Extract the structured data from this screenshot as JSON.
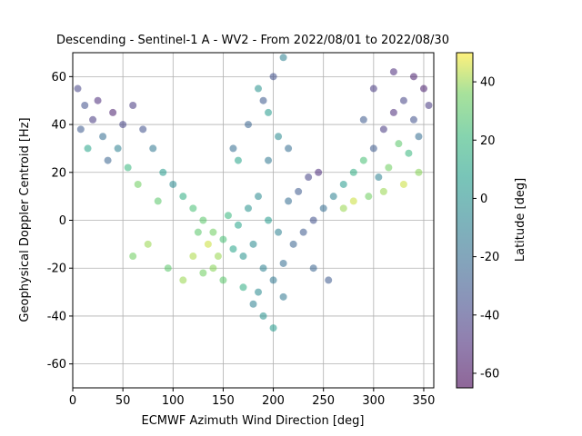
{
  "chart_data": {
    "type": "scatter",
    "title": "Descending - Sentinel-1 A - WV2 - From 2022/08/01 to 2022/08/30",
    "xlabel": "ECMWF Azimuth Wind Direction [deg]",
    "ylabel": "Geophysical Doppler Centroid [Hz]",
    "xlim": [
      0,
      360
    ],
    "ylim": [
      -70,
      70
    ],
    "xticks": [
      0,
      50,
      100,
      150,
      200,
      250,
      300,
      350
    ],
    "yticks": [
      -60,
      -40,
      -20,
      0,
      20,
      40,
      60
    ],
    "grid": true,
    "colorbar": {
      "label": "Latitude [deg]",
      "range": [
        -65,
        50
      ],
      "ticks": [
        -60,
        -40,
        -20,
        0,
        20,
        40
      ],
      "colormap": "viridis",
      "alpha": 0.55
    },
    "series": [
      {
        "points": [
          [
            5,
            55,
            -40
          ],
          [
            12,
            48,
            -35
          ],
          [
            20,
            42,
            -45
          ],
          [
            8,
            38,
            -30
          ],
          [
            25,
            50,
            -50
          ],
          [
            30,
            35,
            -20
          ],
          [
            15,
            30,
            10
          ],
          [
            40,
            45,
            -55
          ],
          [
            50,
            40,
            -40
          ],
          [
            35,
            25,
            -25
          ],
          [
            60,
            48,
            -45
          ],
          [
            45,
            30,
            -10
          ],
          [
            70,
            38,
            -35
          ],
          [
            55,
            22,
            20
          ],
          [
            80,
            30,
            -15
          ],
          [
            65,
            15,
            35
          ],
          [
            90,
            20,
            5
          ],
          [
            100,
            15,
            -5
          ],
          [
            85,
            8,
            30
          ],
          [
            110,
            10,
            15
          ],
          [
            120,
            5,
            25
          ],
          [
            130,
            0,
            30
          ],
          [
            140,
            -5,
            35
          ],
          [
            150,
            -8,
            25
          ],
          [
            160,
            -12,
            10
          ],
          [
            170,
            -15,
            0
          ],
          [
            180,
            -10,
            -5
          ],
          [
            190,
            -20,
            -10
          ],
          [
            200,
            -25,
            -15
          ],
          [
            210,
            -18,
            -20
          ],
          [
            220,
            -10,
            -25
          ],
          [
            230,
            -5,
            -30
          ],
          [
            240,
            0,
            -35
          ],
          [
            250,
            5,
            -20
          ],
          [
            260,
            10,
            -10
          ],
          [
            270,
            15,
            5
          ],
          [
            280,
            20,
            15
          ],
          [
            290,
            25,
            25
          ],
          [
            300,
            30,
            -30
          ],
          [
            310,
            38,
            -45
          ],
          [
            320,
            45,
            -50
          ],
          [
            330,
            50,
            -40
          ],
          [
            340,
            42,
            -35
          ],
          [
            350,
            55,
            -55
          ],
          [
            355,
            48,
            -45
          ],
          [
            345,
            35,
            -20
          ],
          [
            335,
            28,
            20
          ],
          [
            325,
            32,
            30
          ],
          [
            315,
            22,
            35
          ],
          [
            305,
            18,
            -10
          ],
          [
            175,
            5,
            0
          ],
          [
            185,
            10,
            -5
          ],
          [
            195,
            0,
            5
          ],
          [
            205,
            -5,
            -10
          ],
          [
            165,
            -2,
            10
          ],
          [
            155,
            2,
            20
          ],
          [
            145,
            -15,
            40
          ],
          [
            135,
            -10,
            45
          ],
          [
            125,
            -5,
            30
          ],
          [
            215,
            8,
            -20
          ],
          [
            225,
            12,
            -30
          ],
          [
            235,
            18,
            -40
          ],
          [
            245,
            20,
            -50
          ],
          [
            195,
            25,
            -15
          ],
          [
            185,
            -30,
            -5
          ],
          [
            190,
            -40,
            0
          ],
          [
            200,
            -45,
            5
          ],
          [
            180,
            -35,
            -10
          ],
          [
            170,
            -28,
            15
          ],
          [
            210,
            -32,
            -15
          ],
          [
            160,
            30,
            -20
          ],
          [
            175,
            40,
            -25
          ],
          [
            190,
            50,
            -30
          ],
          [
            200,
            60,
            -35
          ],
          [
            210,
            68,
            -10
          ],
          [
            185,
            55,
            0
          ],
          [
            195,
            45,
            5
          ],
          [
            205,
            35,
            -5
          ],
          [
            165,
            25,
            10
          ],
          [
            215,
            30,
            -20
          ],
          [
            75,
            -10,
            40
          ],
          [
            60,
            -15,
            35
          ],
          [
            95,
            -20,
            30
          ],
          [
            110,
            -25,
            40
          ],
          [
            130,
            -22,
            35
          ],
          [
            120,
            -15,
            42
          ],
          [
            140,
            -20,
            38
          ],
          [
            150,
            -25,
            30
          ],
          [
            240,
            -20,
            -25
          ],
          [
            255,
            -25,
            -30
          ],
          [
            270,
            5,
            40
          ],
          [
            280,
            8,
            45
          ],
          [
            295,
            10,
            35
          ],
          [
            310,
            12,
            40
          ],
          [
            330,
            15,
            45
          ],
          [
            345,
            20,
            38
          ],
          [
            290,
            42,
            -30
          ],
          [
            300,
            55,
            -45
          ],
          [
            320,
            62,
            -50
          ],
          [
            340,
            60,
            -55
          ]
        ]
      }
    ]
  }
}
